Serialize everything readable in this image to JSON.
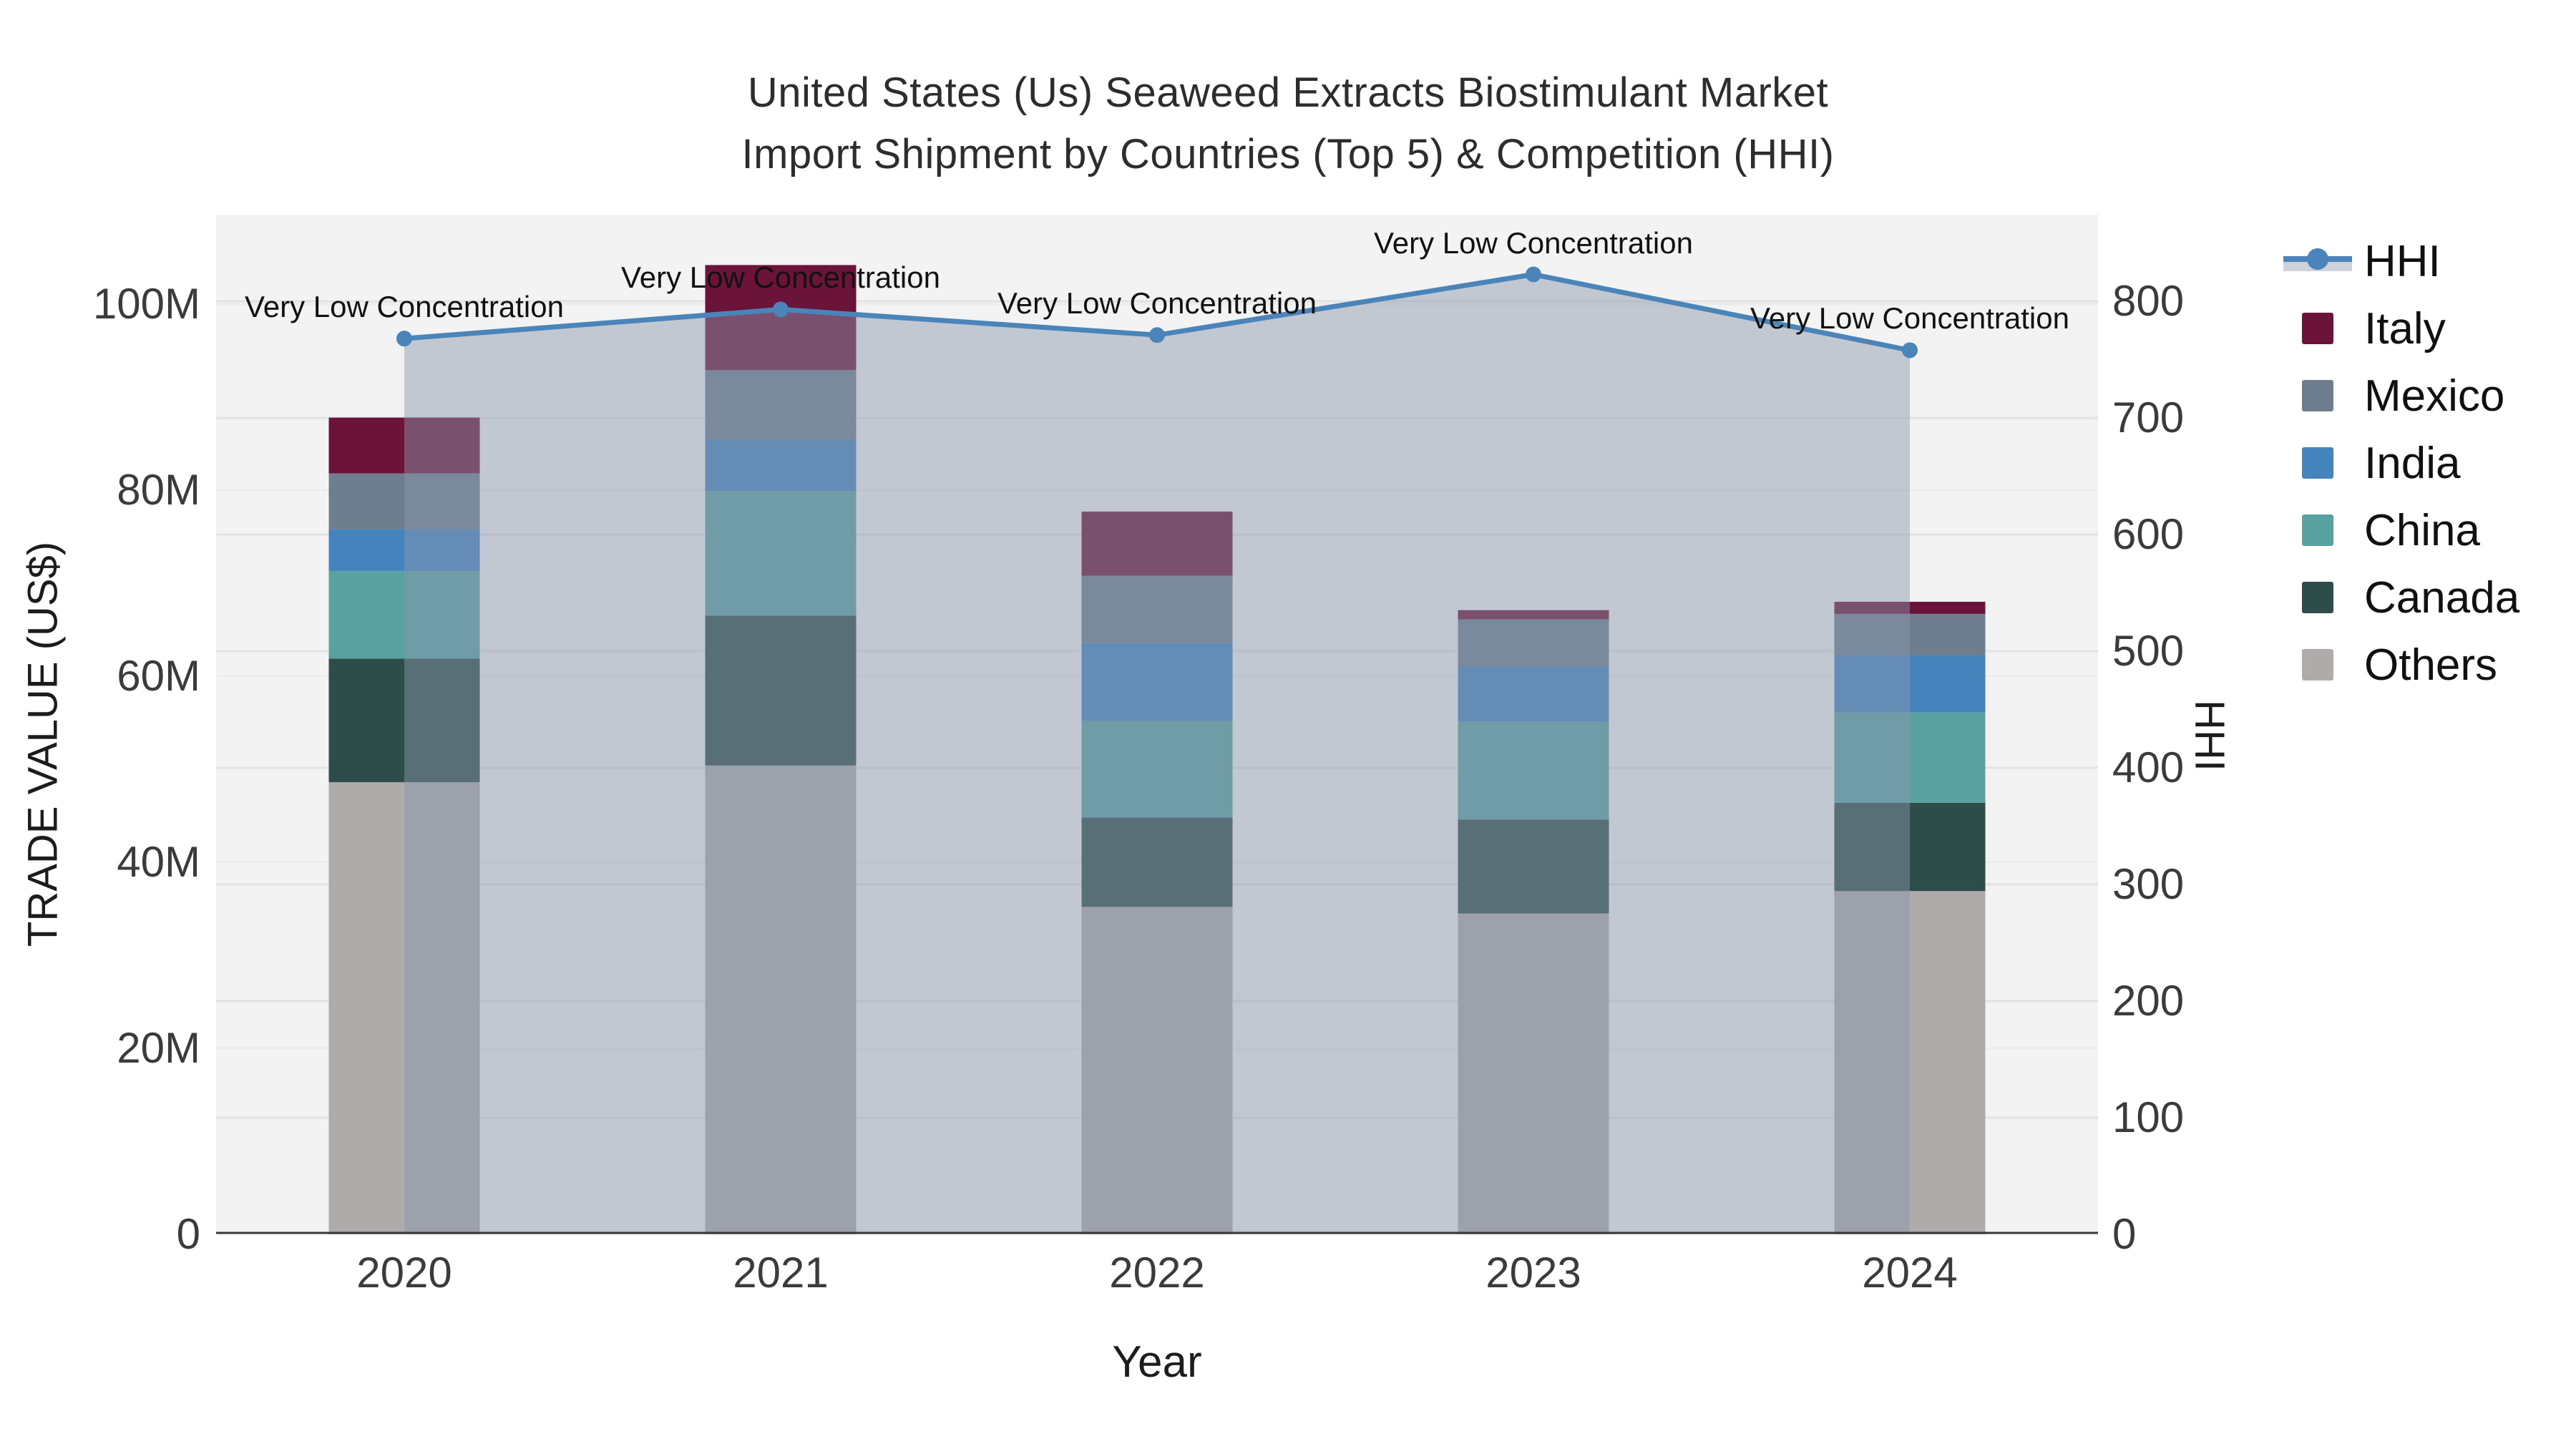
{
  "title": {
    "line1": "United States (Us) Seaweed Extracts Biostimulant Market",
    "line2": "Import Shipment by Countries (Top 5) & Competition (HHI)"
  },
  "axes": {
    "y_left": {
      "title": "TRADE VALUE (US$)",
      "ticks": [
        {
          "label": "0",
          "value": 0
        },
        {
          "label": "20M",
          "value": 20
        },
        {
          "label": "40M",
          "value": 40
        },
        {
          "label": "60M",
          "value": 60
        },
        {
          "label": "80M",
          "value": 80
        },
        {
          "label": "100M",
          "value": 100
        }
      ]
    },
    "y_right": {
      "title": "HHI",
      "ticks": [
        {
          "label": "0",
          "value": 0
        },
        {
          "label": "100",
          "value": 100
        },
        {
          "label": "200",
          "value": 200
        },
        {
          "label": "300",
          "value": 300
        },
        {
          "label": "400",
          "value": 400
        },
        {
          "label": "500",
          "value": 500
        },
        {
          "label": "600",
          "value": 600
        },
        {
          "label": "700",
          "value": 700
        },
        {
          "label": "800",
          "value": 800
        }
      ]
    },
    "x": {
      "title": "Year"
    }
  },
  "chart_data": {
    "type": "bar+line",
    "title": "United States (Us) Seaweed Extracts Biostimulant Market Import Shipment by Countries (Top 5) & Competition (HHI)",
    "xlabel": "Year",
    "ylabel_left": "TRADE VALUE (US$)",
    "ylabel_right": "HHI",
    "ylim_left_millions": [
      0,
      109.6
    ],
    "ylim_right": [
      0,
      874
    ],
    "grid": true,
    "legend_position": "right",
    "categories": [
      "2020",
      "2021",
      "2022",
      "2023",
      "2024"
    ],
    "bar_unit": "million US$",
    "stack_order_bottom_to_top": [
      "Others",
      "Canada",
      "China",
      "India",
      "Mexico",
      "Italy"
    ],
    "series": [
      {
        "name": "Italy",
        "color": "#6b1338",
        "values": [
          6.0,
          11.3,
          6.9,
          1.0,
          1.3
        ]
      },
      {
        "name": "Mexico",
        "color": "#6f7e8e",
        "values": [
          6.0,
          7.5,
          7.2,
          5.1,
          4.4
        ]
      },
      {
        "name": "India",
        "color": "#4583bc",
        "values": [
          4.5,
          5.5,
          8.4,
          5.9,
          6.2
        ]
      },
      {
        "name": "China",
        "color": "#5aa1a2",
        "values": [
          9.4,
          13.4,
          10.4,
          10.5,
          9.7
        ]
      },
      {
        "name": "Canada",
        "color": "#2d4c4a",
        "values": [
          13.3,
          16.1,
          9.6,
          10.1,
          9.5
        ]
      },
      {
        "name": "Others",
        "color": "#aeabaa",
        "values": [
          48.6,
          50.4,
          35.2,
          34.5,
          36.9
        ]
      }
    ],
    "bar_totals_millions": [
      87.8,
      104.2,
      77.7,
      67.1,
      68.0
    ],
    "hhi_line": {
      "name": "HHI",
      "color": "#4a84b8",
      "area_fill": "rgba(139,150,173,0.47)",
      "values": [
        768,
        793,
        771,
        823,
        758
      ],
      "annotations": [
        "Very Low Concentration",
        "Very Low Concentration",
        "Very Low Concentration",
        "Very Low Concentration",
        "Very Low Concentration"
      ]
    }
  },
  "legend": {
    "items": [
      {
        "label": "HHI",
        "type": "line"
      },
      {
        "label": "Italy",
        "type": "swatch",
        "color": "#6b1338"
      },
      {
        "label": "Mexico",
        "type": "swatch",
        "color": "#6f7e8e"
      },
      {
        "label": "India",
        "type": "swatch",
        "color": "#4583bc"
      },
      {
        "label": "China",
        "type": "swatch",
        "color": "#5aa1a2"
      },
      {
        "label": "Canada",
        "type": "swatch",
        "color": "#2d4c4a"
      },
      {
        "label": "Others",
        "type": "swatch",
        "color": "#aeabaa"
      }
    ]
  },
  "colors": {
    "plot_background": "#f3f3f3",
    "page_background": "#ffffff",
    "grid_left": "#ececec",
    "grid_right": "#e2e2e4",
    "axis_line": "#3a3a3a",
    "hhi_line": "#4a84b8",
    "hhi_area": "rgba(139,150,173,0.47)",
    "text": "#2d2d2d"
  }
}
